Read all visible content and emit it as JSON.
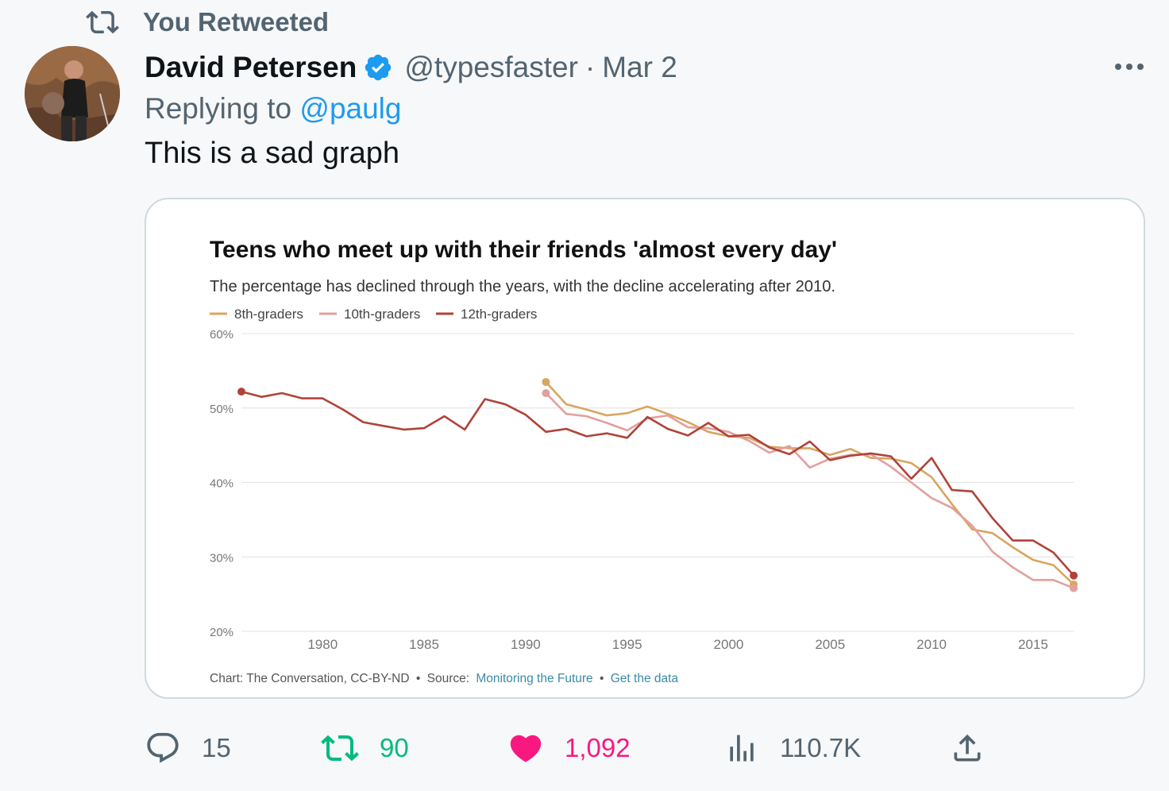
{
  "social_context": "You Retweeted",
  "author": {
    "name": "David Petersen",
    "handle": "@typesfaster",
    "separator": "·",
    "date": "Mar 2"
  },
  "reply_to": {
    "prefix": "Replying to",
    "mention": "@paulg"
  },
  "tweet_text": "This is a sad graph",
  "chart_card": {
    "title": "Teens who meet up with their friends 'almost every day'",
    "subtitle": "The percentage has declined through the years, with the decline accelerating after 2010.",
    "footer": {
      "credit": "Chart: The Conversation, CC-BY-ND",
      "sep1": "•",
      "source_prefix": "Source:",
      "source_link": "Monitoring the Future",
      "sep2": "•",
      "data_link": "Get the data"
    }
  },
  "chart_data": {
    "type": "line",
    "title": "Teens who meet up with their friends 'almost every day'",
    "subtitle": "The percentage has declined through the years, with the decline accelerating after 2010.",
    "x_ticks": [
      "1980",
      "1985",
      "1990",
      "1995",
      "2000",
      "2005",
      "2010",
      "2015"
    ],
    "y_ticks": [
      "60%",
      "50%",
      "40%",
      "30%",
      "20%"
    ],
    "xlim": [
      1976,
      2017
    ],
    "ylim": [
      20,
      60
    ],
    "grid": true,
    "legend": "top-left",
    "series": [
      {
        "name": "8th-graders",
        "color": "#d8a660",
        "x": [
          1991,
          1992,
          1993,
          1994,
          1995,
          1996,
          1997,
          1998,
          1999,
          2000,
          2001,
          2002,
          2003,
          2004,
          2005,
          2006,
          2007,
          2008,
          2009,
          2010,
          2011,
          2012,
          2013,
          2014,
          2015,
          2016,
          2017
        ],
        "y": [
          53.5,
          50.5,
          49.8,
          49,
          49.3,
          50.2,
          49.2,
          48.1,
          46.8,
          46.2,
          46,
          44.8,
          44.6,
          44.6,
          43.7,
          44.5,
          43.3,
          43.2,
          42.6,
          40.7,
          37.1,
          33.7,
          33.2,
          31.3,
          29.6,
          28.9,
          26.3
        ]
      },
      {
        "name": "10th-graders",
        "color": "#e2a09d",
        "x": [
          1991,
          1992,
          1993,
          1994,
          1995,
          1996,
          1997,
          1998,
          1999,
          2000,
          2001,
          2002,
          2003,
          2004,
          2005,
          2006,
          2007,
          2008,
          2009,
          2010,
          2011,
          2012,
          2013,
          2014,
          2015,
          2016,
          2017
        ],
        "y": [
          52,
          49.2,
          48.9,
          48,
          47,
          48.6,
          49,
          47.4,
          47.3,
          46.8,
          45.6,
          44,
          44.9,
          42,
          43.2,
          43.7,
          43.8,
          42.1,
          40,
          37.9,
          36.6,
          34.2,
          30.7,
          28.6,
          26.9,
          26.9,
          25.8
        ]
      },
      {
        "name": "12th-graders",
        "color": "#b0433a",
        "x": [
          1976,
          1977,
          1978,
          1979,
          1980,
          1981,
          1982,
          1983,
          1984,
          1985,
          1986,
          1987,
          1988,
          1989,
          1990,
          1991,
          1992,
          1993,
          1994,
          1995,
          1996,
          1997,
          1998,
          1999,
          2000,
          2001,
          2002,
          2003,
          2004,
          2005,
          2006,
          2007,
          2008,
          2009,
          2010,
          2011,
          2012,
          2013,
          2014,
          2015,
          2016,
          2017
        ],
        "y": [
          52.2,
          51.5,
          52,
          51.3,
          51.3,
          49.8,
          48.1,
          47.6,
          47.1,
          47.3,
          48.9,
          47.1,
          51.2,
          50.5,
          49.1,
          46.8,
          47.2,
          46.2,
          46.6,
          46,
          48.8,
          47.2,
          46.3,
          48,
          46.2,
          46.4,
          44.7,
          43.8,
          45.5,
          43,
          43.6,
          43.9,
          43.5,
          40.5,
          43.3,
          39,
          38.8,
          35.2,
          32.2,
          32.2,
          30.6,
          27.5
        ]
      }
    ]
  },
  "actions": {
    "replies": "15",
    "retweets": "90",
    "likes": "1,092",
    "views": "110.7K"
  },
  "colors": {
    "retweet": "#00ba7c",
    "like": "#f91880",
    "link": "#1d9bf0",
    "secondary_text": "#536471",
    "verified": "#1d9bf0",
    "card_link": "#3a8ba6"
  },
  "icons": [
    "retweet-icon",
    "verified-badge-icon",
    "more-icon",
    "reply-icon",
    "like-icon",
    "views-icon",
    "share-icon"
  ]
}
